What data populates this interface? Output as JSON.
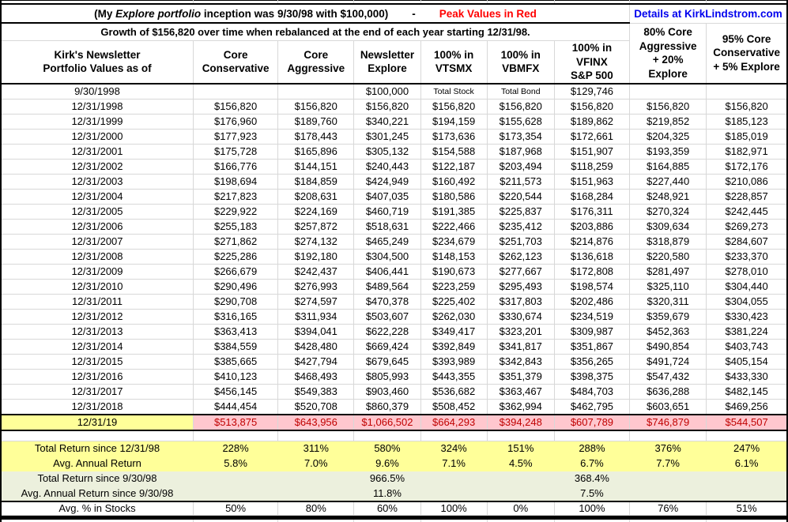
{
  "header": {
    "title_prefix": "(My ",
    "title_italic": "Explore portfolio",
    "title_suffix": " inception was 9/30/98 with $100,000)",
    "title_dash": "-",
    "peak_note": "Peak Values in Red",
    "details_link": "Details at KirkLindstrom.com",
    "growth_caption": "Growth of $156,820 over time when rebalanced at the end of each year starting 12/31/98."
  },
  "columns": [
    "Kirk's Newsletter\nPortfolio Values as of",
    "Core\nConservative",
    "Core\nAggressive",
    "Newsletter\nExplore",
    "100% in\nVTSMX",
    "100% in\nVBMFX",
    "100% in\nVFINX\nS&P 500",
    "80% Core\nAggressive\n+ 20%\nExplore",
    "95% Core\nConservative\n+ 5% Explore"
  ],
  "rows": [
    {
      "date": "9/30/1998",
      "values": [
        "",
        "",
        "$100,000",
        "Total Stock",
        "Total Bond",
        "$129,746",
        "",
        ""
      ]
    },
    {
      "date": "12/31/1998",
      "values": [
        "$156,820",
        "$156,820",
        "$156,820",
        "$156,820",
        "$156,820",
        "$156,820",
        "$156,820",
        "$156,820"
      ]
    },
    {
      "date": "12/31/1999",
      "values": [
        "$176,960",
        "$189,760",
        "$340,221",
        "$194,159",
        "$155,628",
        "$189,862",
        "$219,852",
        "$185,123"
      ]
    },
    {
      "date": "12/31/2000",
      "values": [
        "$177,923",
        "$178,443",
        "$301,245",
        "$173,636",
        "$173,354",
        "$172,661",
        "$204,325",
        "$185,019"
      ]
    },
    {
      "date": "12/31/2001",
      "values": [
        "$175,728",
        "$165,896",
        "$305,132",
        "$154,588",
        "$187,968",
        "$151,907",
        "$193,359",
        "$182,971"
      ]
    },
    {
      "date": "12/31/2002",
      "values": [
        "$166,776",
        "$144,151",
        "$240,443",
        "$122,187",
        "$203,494",
        "$118,259",
        "$164,885",
        "$172,176"
      ]
    },
    {
      "date": "12/31/2003",
      "values": [
        "$198,694",
        "$184,859",
        "$424,949",
        "$160,492",
        "$211,573",
        "$151,963",
        "$227,440",
        "$210,086"
      ]
    },
    {
      "date": "12/31/2004",
      "values": [
        "$217,823",
        "$208,631",
        "$407,035",
        "$180,586",
        "$220,544",
        "$168,284",
        "$248,921",
        "$228,857"
      ]
    },
    {
      "date": "12/31/2005",
      "values": [
        "$229,922",
        "$224,169",
        "$460,719",
        "$191,385",
        "$225,837",
        "$176,311",
        "$270,324",
        "$242,445"
      ]
    },
    {
      "date": "12/31/2006",
      "values": [
        "$255,183",
        "$257,872",
        "$518,631",
        "$222,466",
        "$235,412",
        "$203,886",
        "$309,634",
        "$269,273"
      ]
    },
    {
      "date": "12/31/2007",
      "values": [
        "$271,862",
        "$274,132",
        "$465,249",
        "$234,679",
        "$251,703",
        "$214,876",
        "$318,879",
        "$284,607"
      ]
    },
    {
      "date": "12/31/2008",
      "values": [
        "$225,286",
        "$192,180",
        "$304,500",
        "$148,153",
        "$262,123",
        "$136,618",
        "$220,580",
        "$233,370"
      ]
    },
    {
      "date": "12/31/2009",
      "values": [
        "$266,679",
        "$242,437",
        "$406,441",
        "$190,673",
        "$277,667",
        "$172,808",
        "$281,497",
        "$278,010"
      ]
    },
    {
      "date": "12/31/2010",
      "values": [
        "$290,496",
        "$276,993",
        "$489,564",
        "$223,259",
        "$295,493",
        "$198,574",
        "$325,110",
        "$304,440"
      ]
    },
    {
      "date": "12/31/2011",
      "values": [
        "$290,708",
        "$274,597",
        "$470,378",
        "$225,402",
        "$317,803",
        "$202,486",
        "$320,311",
        "$304,055"
      ]
    },
    {
      "date": "12/31/2012",
      "values": [
        "$316,165",
        "$311,934",
        "$503,607",
        "$262,030",
        "$330,674",
        "$234,519",
        "$359,679",
        "$330,423"
      ]
    },
    {
      "date": "12/31/2013",
      "values": [
        "$363,413",
        "$394,041",
        "$622,228",
        "$349,417",
        "$323,201",
        "$309,987",
        "$452,363",
        "$381,224"
      ]
    },
    {
      "date": "12/31/2014",
      "values": [
        "$384,559",
        "$428,480",
        "$669,424",
        "$392,849",
        "$341,817",
        "$351,867",
        "$490,854",
        "$403,743"
      ]
    },
    {
      "date": "12/31/2015",
      "values": [
        "$385,665",
        "$427,794",
        "$679,645",
        "$393,989",
        "$342,843",
        "$356,265",
        "$491,724",
        "$405,154"
      ]
    },
    {
      "date": "12/31/2016",
      "values": [
        "$410,123",
        "$468,493",
        "$805,993",
        "$443,355",
        "$351,379",
        "$398,375",
        "$547,432",
        "$433,330"
      ]
    },
    {
      "date": "12/31/2017",
      "values": [
        "$456,145",
        "$549,383",
        "$903,460",
        "$536,682",
        "$363,467",
        "$484,703",
        "$636,288",
        "$482,145"
      ]
    },
    {
      "date": "12/31/2018",
      "values": [
        "$444,454",
        "$520,708",
        "$860,379",
        "$508,452",
        "$362,994",
        "$462,795",
        "$603,651",
        "$469,256"
      ]
    },
    {
      "date": "12/31/19",
      "peak": true,
      "values": [
        "$513,875",
        "$643,956",
        "$1,066,502",
        "$664,293",
        "$394,248",
        "$607,789",
        "$746,879",
        "$544,507"
      ]
    }
  ],
  "summary": [
    {
      "label": "Total Return since 12/31/98",
      "style": "yellow",
      "values": [
        "228%",
        "311%",
        "580%",
        "324%",
        "151%",
        "288%",
        "376%",
        "247%"
      ]
    },
    {
      "label": "Avg. Annual Return",
      "style": "yellow",
      "values": [
        "5.8%",
        "7.0%",
        "9.6%",
        "7.1%",
        "4.5%",
        "6.7%",
        "7.7%",
        "6.1%"
      ]
    },
    {
      "label": "Total Return since 9/30/98",
      "style": "green",
      "values": [
        "",
        "",
        "966.5%",
        "",
        "",
        "368.4%",
        "",
        ""
      ]
    },
    {
      "label": "Avg. Annual Return since 9/30/98",
      "style": "green",
      "values": [
        "",
        "",
        "11.8%",
        "",
        "",
        "7.5%",
        "",
        ""
      ]
    },
    {
      "label": "Avg. % in Stocks",
      "style": "plain",
      "values": [
        "50%",
        "80%",
        "60%",
        "100%",
        "0%",
        "100%",
        "76%",
        "51%"
      ]
    }
  ],
  "colors": {
    "peak_note_red": "#FF0000",
    "details_link_blue": "#0000EE",
    "highlight_yellow": "#FFFF99",
    "peak_row_pink": "#FFC7CE",
    "peak_value_red": "#C00000",
    "summary_green": "#ECF0DD"
  }
}
